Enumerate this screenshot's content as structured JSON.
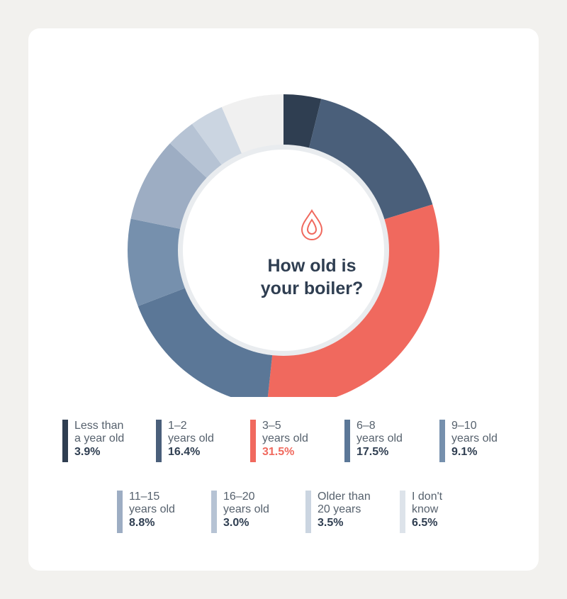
{
  "chart_data": {
    "type": "pie",
    "title": "How old is\nyour boiler?",
    "unit": "%",
    "categories": [
      "Less than\na year old",
      "1–2\nyears old",
      "3–5\nyears old",
      "6–8\nyears old",
      "9–10\nyears old",
      "11–15\nyears old",
      "16–20\nyears old",
      "Older than\n20 years",
      "I don't\nknow"
    ],
    "values": [
      3.9,
      16.4,
      31.5,
      17.5,
      9.1,
      8.8,
      3.0,
      3.5,
      6.5
    ],
    "value_labels": [
      "3.9%",
      "16.4%",
      "31.5%",
      "17.5%",
      "9.1%",
      "8.8%",
      "3.0%",
      "3.5%",
      "6.5%"
    ],
    "colors": [
      "#2f3e51",
      "#4a5f7a",
      "#f0695e",
      "#5b7797",
      "#7690ad",
      "#9dadc3",
      "#b6c3d4",
      "#cbd5e1",
      "#f0f0f0"
    ],
    "legend_colors": [
      "#2f3e51",
      "#4a5f7a",
      "#f0695e",
      "#5b7797",
      "#7690ad",
      "#9dadc3",
      "#b6c3d4",
      "#cbd5e1",
      "#dde3ea"
    ],
    "value_colors": [
      "#2f3e51",
      "#2f3e51",
      "#f0695e",
      "#2f3e51",
      "#2f3e51",
      "#2f3e51",
      "#2f3e51",
      "#2f3e51",
      "#2f3e51"
    ],
    "highlight_index": 2,
    "legend_placement": "bottom",
    "icon": "water-drop-icon"
  }
}
